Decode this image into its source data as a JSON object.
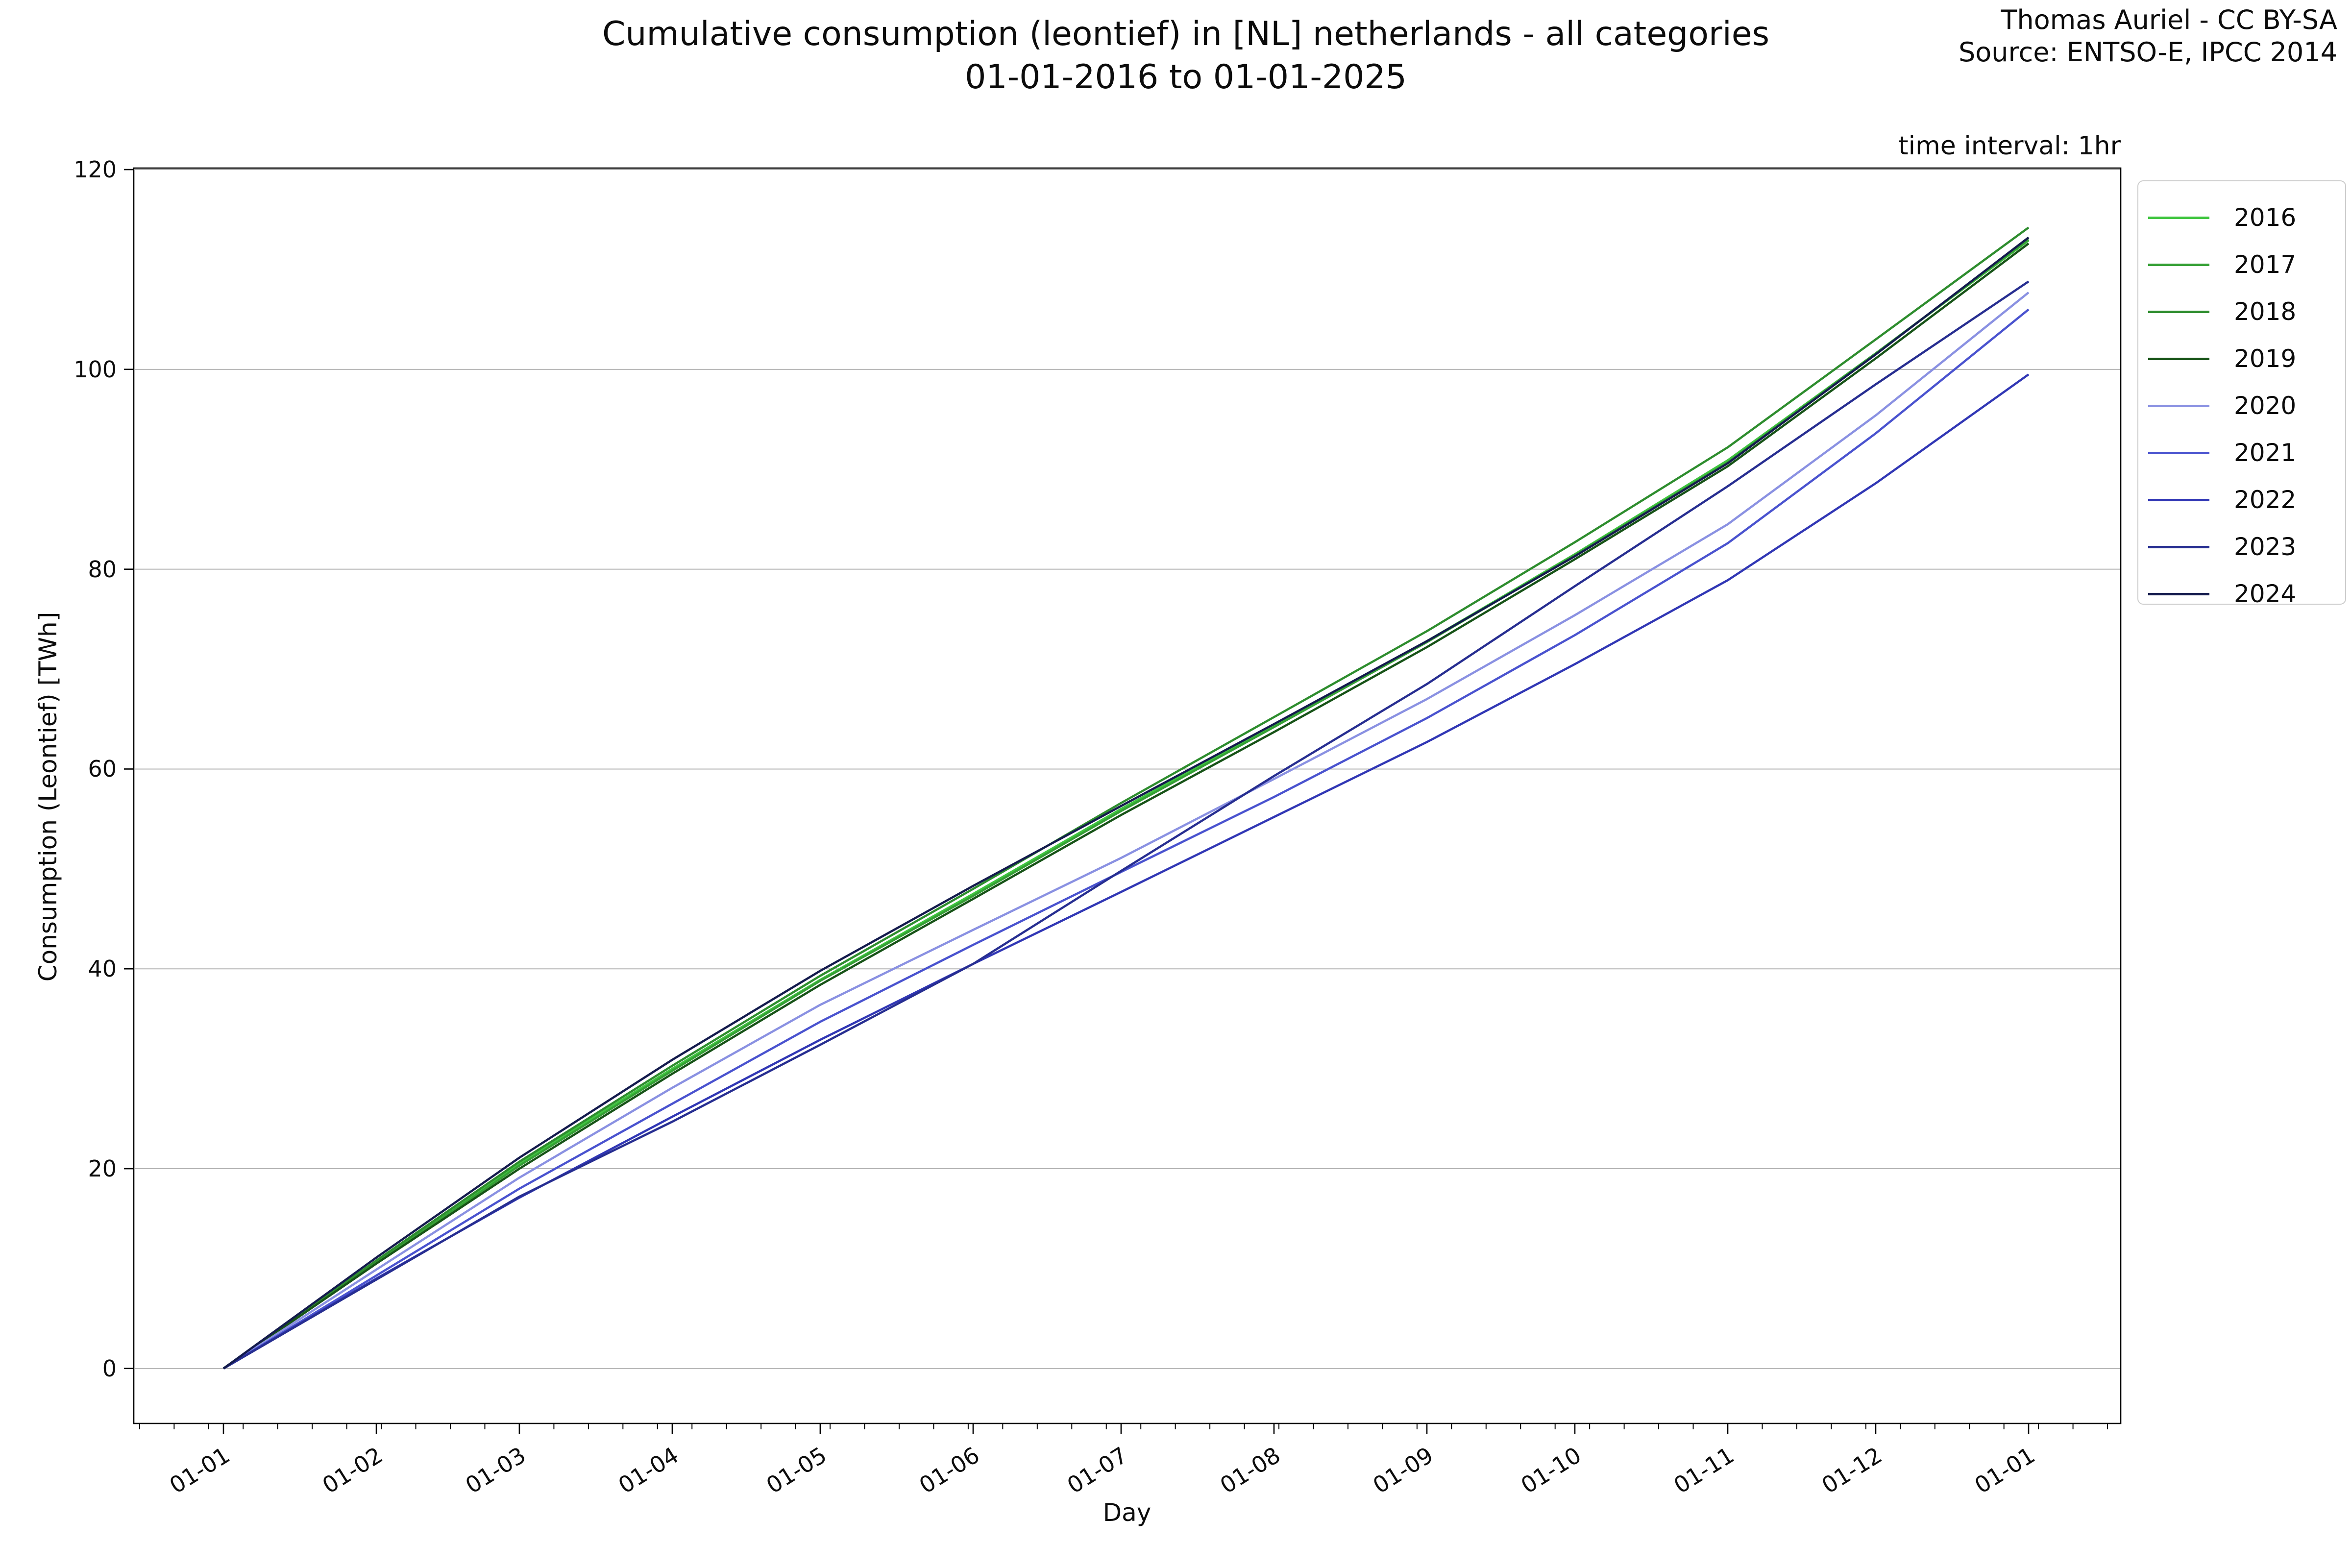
{
  "title": {
    "line1": "Cumulative consumption (leontief) in [NL] netherlands - all categories",
    "line2": "01-01-2016 to 01-01-2025"
  },
  "credit": {
    "line1": "Thomas Auriel - CC BY-SA",
    "line2": "Source: ENTSO-E, IPCC 2014"
  },
  "annotation": "time interval: 1hr",
  "axes": {
    "xlabel": "Day",
    "ylabel": "Consumption (Leontief) [TWh]",
    "ytick_values": [
      0,
      20,
      40,
      60,
      80,
      100,
      120
    ],
    "xtick_labels": [
      "01-01",
      "01-02",
      "01-03",
      "01-04",
      "01-05",
      "01-06",
      "01-07",
      "01-08",
      "01-09",
      "01-10",
      "01-11",
      "01-12",
      "01-01"
    ]
  },
  "chart_data": {
    "type": "line",
    "title": "Cumulative consumption (leontief) in [NL] netherlands - all categories 01-01-2016 to 01-01-2025",
    "xlabel": "Day",
    "ylabel": "Consumption (Leontief) [TWh]",
    "units": "TWh",
    "grid": "horizontal",
    "grid_color": "#b4b4b4",
    "legend_position": "right-outside",
    "ylim": [
      -5.5,
      120.15
    ],
    "xlim_days": [
      -18.2,
      384.7
    ],
    "yticks": [
      0,
      20,
      40,
      60,
      80,
      100,
      120
    ],
    "xtick_labels": [
      "01-01",
      "01-02",
      "01-03",
      "01-04",
      "01-05",
      "01-06",
      "01-07",
      "01-08",
      "01-09",
      "01-10",
      "01-11",
      "01-12",
      "01-01"
    ],
    "minor_xticks_days": {
      "start": -17,
      "step": 7,
      "end": 383
    },
    "x_month_start_days": [
      0,
      31,
      60,
      91,
      121,
      152,
      182,
      213,
      244,
      274,
      305,
      335,
      366
    ],
    "series": [
      {
        "name": "2016",
        "color": "#3fc53f",
        "monthly_cumulative_twh": [
          0,
          10.7,
          20.5,
          30.0,
          38.9,
          47.5,
          56.0,
          64.4,
          72.8,
          81.5,
          90.9,
          101.6,
          112.9
        ]
      },
      {
        "name": "2017",
        "color": "#35a035",
        "monthly_cumulative_twh": [
          0,
          10.6,
          20.3,
          29.8,
          38.8,
          47.3,
          55.8,
          64.2,
          72.7,
          81.4,
          90.7,
          101.6,
          113.0
        ]
      },
      {
        "name": "2018",
        "color": "#2e8d2e",
        "monthly_cumulative_twh": [
          0,
          10.8,
          20.7,
          30.3,
          39.3,
          48.0,
          56.6,
          65.2,
          73.8,
          82.7,
          92.2,
          103.0,
          114.2
        ]
      },
      {
        "name": "2019",
        "color": "#175317",
        "monthly_cumulative_twh": [
          0,
          10.5,
          20.0,
          29.5,
          38.4,
          47.0,
          55.4,
          63.7,
          72.2,
          81.0,
          90.3,
          101.1,
          112.6
        ]
      },
      {
        "name": "2020",
        "color": "#8a91e2",
        "monthly_cumulative_twh": [
          0,
          9.9,
          19.1,
          28.1,
          36.4,
          43.9,
          51.1,
          59.0,
          67.0,
          75.4,
          84.5,
          95.4,
          107.7
        ]
      },
      {
        "name": "2021",
        "color": "#4a53cf",
        "monthly_cumulative_twh": [
          0,
          9.3,
          18.0,
          26.5,
          34.7,
          42.4,
          49.7,
          57.2,
          65.1,
          73.4,
          82.6,
          93.6,
          106.0
        ]
      },
      {
        "name": "2022",
        "color": "#3137b5",
        "monthly_cumulative_twh": [
          0,
          9.0,
          17.1,
          25.2,
          32.9,
          40.5,
          47.7,
          55.2,
          62.7,
          70.5,
          78.9,
          88.6,
          99.5
        ]
      },
      {
        "name": "2023",
        "color": "#272e91",
        "monthly_cumulative_twh": [
          0,
          8.9,
          17.2,
          24.7,
          32.4,
          40.5,
          49.8,
          59.3,
          68.5,
          78.3,
          88.3,
          98.5,
          108.8
        ]
      },
      {
        "name": "2024",
        "color": "#141b4d",
        "monthly_cumulative_twh": [
          0,
          11.1,
          21.1,
          30.9,
          39.8,
          48.3,
          56.3,
          64.5,
          72.8,
          81.3,
          90.6,
          101.5,
          113.2
        ]
      }
    ]
  }
}
